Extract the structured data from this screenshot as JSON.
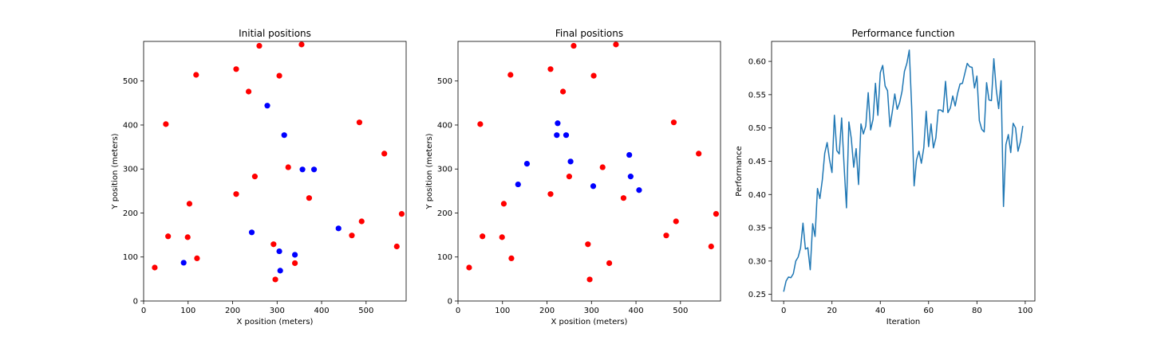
{
  "chart_data": [
    {
      "type": "scatter",
      "title": "Initial positions",
      "xlabel": "X position (meters)",
      "ylabel": "Y position (meters)",
      "xlim": [
        0,
        590
      ],
      "ylim": [
        0,
        590
      ],
      "xticks": [
        0,
        100,
        200,
        300,
        400,
        500
      ],
      "yticks": [
        0,
        100,
        200,
        300,
        400,
        500
      ],
      "grid": false,
      "series": [
        {
          "color": "#ff0000",
          "points": [
            [
              25,
              76
            ],
            [
              55,
              147
            ],
            [
              50,
              402
            ],
            [
              103,
              221
            ],
            [
              99,
              145
            ],
            [
              120,
              97
            ],
            [
              118,
              514
            ],
            [
              208,
              527
            ],
            [
              208,
              243
            ],
            [
              236,
              476
            ],
            [
              260,
              580
            ],
            [
              250,
              283
            ],
            [
              305,
              512
            ],
            [
              292,
              129
            ],
            [
              296,
              49
            ],
            [
              325,
              304
            ],
            [
              340,
              86
            ],
            [
              355,
              583
            ],
            [
              372,
              234
            ],
            [
              485,
              406
            ],
            [
              490,
              181
            ],
            [
              468,
              149
            ],
            [
              541,
              335
            ],
            [
              580,
              198
            ],
            [
              569,
              124
            ]
          ]
        },
        {
          "color": "#0000ff",
          "points": [
            [
              90,
              87
            ],
            [
              243,
              156
            ],
            [
              278,
              444
            ],
            [
              316,
              377
            ],
            [
              305,
              113
            ],
            [
              307,
              69
            ],
            [
              340,
              105
            ],
            [
              357,
              299
            ],
            [
              383,
              299
            ],
            [
              438,
              165
            ]
          ]
        }
      ]
    },
    {
      "type": "scatter",
      "title": "Final positions",
      "xlabel": "X position (meters)",
      "ylabel": "Y position (meters)",
      "xlim": [
        0,
        590
      ],
      "ylim": [
        0,
        590
      ],
      "xticks": [
        0,
        100,
        200,
        300,
        400,
        500
      ],
      "yticks": [
        0,
        100,
        200,
        300,
        400,
        500
      ],
      "grid": false,
      "series": [
        {
          "color": "#ff0000",
          "points": [
            [
              25,
              76
            ],
            [
              55,
              147
            ],
            [
              50,
              402
            ],
            [
              103,
              221
            ],
            [
              99,
              145
            ],
            [
              120,
              97
            ],
            [
              118,
              514
            ],
            [
              208,
              527
            ],
            [
              208,
              243
            ],
            [
              236,
              476
            ],
            [
              260,
              580
            ],
            [
              250,
              283
            ],
            [
              305,
              512
            ],
            [
              292,
              129
            ],
            [
              296,
              49
            ],
            [
              325,
              304
            ],
            [
              340,
              86
            ],
            [
              355,
              583
            ],
            [
              372,
              234
            ],
            [
              485,
              406
            ],
            [
              490,
              181
            ],
            [
              468,
              149
            ],
            [
              541,
              335
            ],
            [
              580,
              198
            ],
            [
              569,
              124
            ]
          ]
        },
        {
          "color": "#0000ff",
          "points": [
            [
              224,
              404
            ],
            [
              222,
              377
            ],
            [
              243,
              377
            ],
            [
              155,
              312
            ],
            [
              135,
              265
            ],
            [
              253,
              317
            ],
            [
              304,
              261
            ],
            [
              385,
              332
            ],
            [
              388,
              283
            ],
            [
              407,
              252
            ]
          ]
        }
      ]
    },
    {
      "type": "line",
      "title": "Performance function",
      "xlabel": "Iteration",
      "ylabel": "Performance",
      "xlim": [
        -5,
        104
      ],
      "ylim": [
        0.24,
        0.63
      ],
      "xticks": [
        0,
        20,
        40,
        60,
        80,
        100
      ],
      "yticks": [
        0.25,
        0.3,
        0.35,
        0.4,
        0.45,
        0.5,
        0.55,
        0.6
      ],
      "ytick_labels": [
        "0.25",
        "0.30",
        "0.35",
        "0.40",
        "0.45",
        "0.50",
        "0.55",
        "0.60"
      ],
      "grid": false,
      "series": [
        {
          "color": "#1f77b4",
          "values": [
            0.254,
            0.27,
            0.276,
            0.275,
            0.281,
            0.3,
            0.306,
            0.32,
            0.357,
            0.318,
            0.32,
            0.287,
            0.356,
            0.337,
            0.409,
            0.394,
            0.422,
            0.462,
            0.478,
            0.452,
            0.433,
            0.519,
            0.466,
            0.461,
            0.515,
            0.444,
            0.38,
            0.509,
            0.484,
            0.441,
            0.469,
            0.415,
            0.506,
            0.491,
            0.503,
            0.553,
            0.497,
            0.513,
            0.567,
            0.519,
            0.583,
            0.594,
            0.563,
            0.556,
            0.502,
            0.525,
            0.551,
            0.528,
            0.538,
            0.555,
            0.585,
            0.597,
            0.617,
            0.53,
            0.413,
            0.452,
            0.465,
            0.447,
            0.47,
            0.525,
            0.472,
            0.506,
            0.47,
            0.485,
            0.527,
            0.527,
            0.524,
            0.57,
            0.523,
            0.53,
            0.548,
            0.533,
            0.552,
            0.566,
            0.567,
            0.582,
            0.597,
            0.592,
            0.591,
            0.56,
            0.578,
            0.511,
            0.498,
            0.494,
            0.568,
            0.542,
            0.541,
            0.604,
            0.558,
            0.529,
            0.571,
            0.382,
            0.475,
            0.49,
            0.463,
            0.507,
            0.5,
            0.465,
            0.479,
            0.503
          ]
        }
      ]
    }
  ]
}
